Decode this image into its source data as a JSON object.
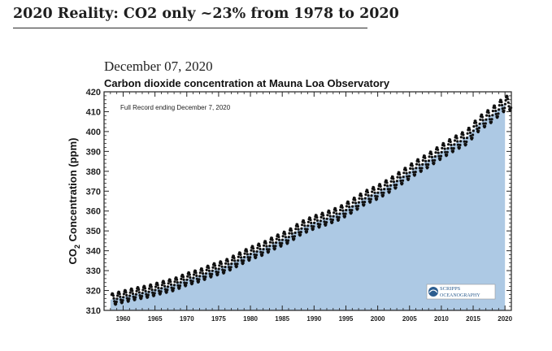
{
  "header": {
    "headline": "2020 Reality: CO2 only ~23% from 1978 to 2020"
  },
  "chart_data": {
    "type": "area",
    "date_label": "December 07, 2020",
    "title": "Carbon dioxide concentration at Mauna Loa Observatory",
    "annotation": "Full Record ending December 7, 2020",
    "ylabel": "CO",
    "ylabel_sub": "2",
    "ylabel_rest": " Concentration (ppm)",
    "xlabel": "",
    "xlim": [
      1957,
      2021
    ],
    "ylim": [
      310,
      420
    ],
    "x_ticks": [
      "1960",
      "1965",
      "1970",
      "1975",
      "1980",
      "1985",
      "1990",
      "1995",
      "2000",
      "2005",
      "2010",
      "2015",
      "2020"
    ],
    "y_ticks": [
      "310",
      "320",
      "330",
      "340",
      "350",
      "360",
      "370",
      "380",
      "390",
      "400",
      "410",
      "420"
    ],
    "fill_color": "#adc9e4",
    "point_color": "#111111",
    "logo_text": {
      "name": "SCRIPPS",
      "sub": "OCEANOGRAPHY"
    },
    "series": [
      {
        "x": [
          1958,
          1960,
          1962,
          1964,
          1966,
          1968,
          1970,
          1972,
          1974,
          1976,
          1978,
          1980,
          1982,
          1984,
          1986,
          1988,
          1990,
          1992,
          1994,
          1996,
          1998,
          2000,
          2002,
          2004,
          2006,
          2008,
          2010,
          2012,
          2014,
          2016,
          2018,
          2020
        ],
        "values": [
          315.3,
          316.9,
          318.4,
          319.6,
          321.4,
          323.0,
          325.7,
          327.5,
          330.2,
          332.1,
          335.4,
          338.7,
          341.1,
          344.4,
          347.2,
          351.5,
          354.3,
          356.4,
          358.9,
          362.6,
          366.7,
          369.5,
          373.2,
          377.5,
          381.9,
          385.6,
          389.9,
          393.8,
          397.1,
          404.2,
          408.5,
          414.2
        ]
      }
    ]
  }
}
